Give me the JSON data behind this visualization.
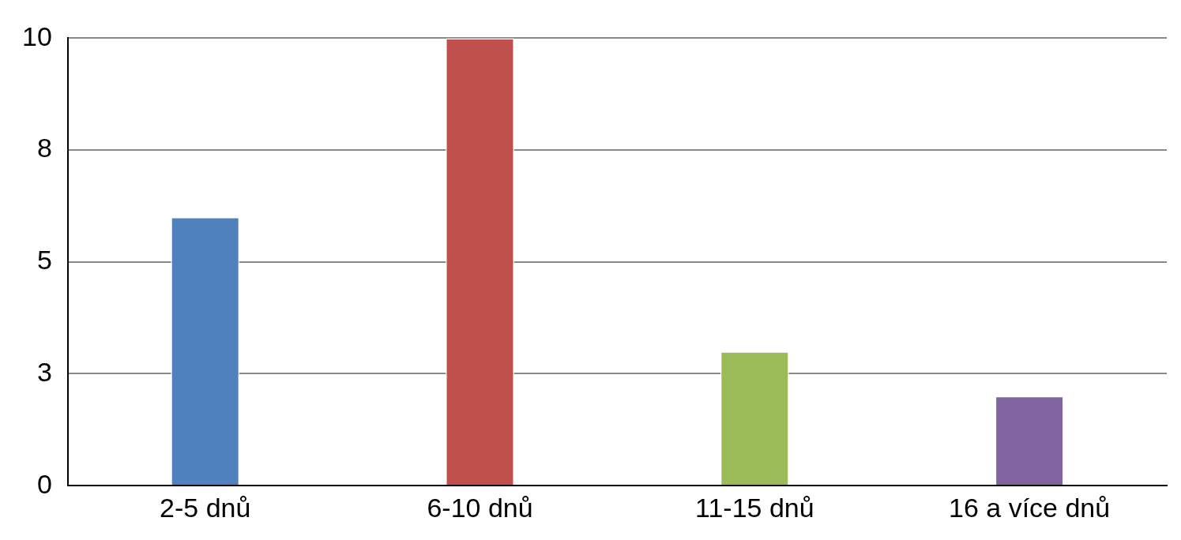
{
  "chart_data": {
    "type": "bar",
    "categories": [
      "2-5 dnů",
      "6-10 dnů",
      "11-15 dnů",
      "16 a více dnů"
    ],
    "values": [
      6,
      10,
      3,
      2
    ],
    "colors": [
      "#4f81bd",
      "#c0504d",
      "#9bbb59",
      "#8064a2"
    ],
    "ylim": [
      0,
      10
    ],
    "yticks": [
      0,
      {
        "value": 2.5,
        "label": "3"
      },
      5,
      {
        "value": 7.5,
        "label": "8"
      },
      10
    ],
    "grid": "y",
    "legend": false
  }
}
